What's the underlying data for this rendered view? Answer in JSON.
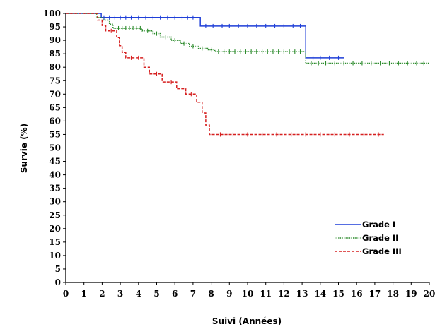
{
  "chart_data": {
    "type": "line",
    "chart_kind": "Kaplan-Meier survival curve (step)",
    "xlabel": "Suivi (Années)",
    "ylabel": "Survie (%)",
    "xlim": [
      0,
      20
    ],
    "ylim": [
      0,
      100
    ],
    "x_ticks": [
      0,
      1,
      2,
      3,
      4,
      5,
      6,
      7,
      8,
      9,
      10,
      11,
      12,
      13,
      14,
      15,
      16,
      17,
      18,
      19,
      20
    ],
    "y_ticks": [
      0,
      5,
      10,
      15,
      20,
      25,
      30,
      35,
      40,
      45,
      50,
      55,
      60,
      65,
      70,
      75,
      80,
      85,
      90,
      95,
      100
    ],
    "grid": false,
    "legend_position": "bottom-right",
    "series": [
      {
        "name": "Grade I",
        "color": "#1f3fd8",
        "line_style": "solid",
        "points": [
          [
            0,
            100
          ],
          [
            1.7,
            100
          ],
          [
            1.95,
            98.5
          ],
          [
            7.4,
            98.5
          ],
          [
            7.4,
            95.3
          ],
          [
            13.2,
            95.3
          ],
          [
            13.2,
            83.5
          ],
          [
            15.3,
            83.5
          ]
        ],
        "censor_x": [
          2.1,
          2.4,
          2.7,
          3.0,
          3.3,
          3.6,
          4.0,
          4.4,
          4.8,
          5.2,
          5.6,
          6.0,
          6.4,
          6.7,
          7.0,
          7.7,
          8.1,
          8.6,
          9.0,
          9.5,
          10.0,
          10.5,
          11.0,
          11.5,
          12.0,
          12.5,
          12.9,
          13.6,
          14.0,
          14.5,
          15.0
        ]
      },
      {
        "name": "Grade II",
        "color": "#2a8a2a",
        "line_style": "dotted",
        "points": [
          [
            0,
            100
          ],
          [
            1.6,
            100
          ],
          [
            1.7,
            98.5
          ],
          [
            2.1,
            97.5
          ],
          [
            2.4,
            96
          ],
          [
            2.6,
            94.5
          ],
          [
            4.2,
            93.5
          ],
          [
            4.8,
            92.5
          ],
          [
            5.2,
            91.2
          ],
          [
            5.8,
            90
          ],
          [
            6.3,
            88.8
          ],
          [
            6.8,
            87.8
          ],
          [
            7.3,
            87
          ],
          [
            7.8,
            86.5
          ],
          [
            8.2,
            85.8
          ],
          [
            13.2,
            85.8
          ],
          [
            13.2,
            81.5
          ],
          [
            20,
            81.5
          ]
        ],
        "censor_x": [
          2.9,
          3.1,
          3.3,
          3.5,
          3.7,
          3.9,
          4.1,
          4.5,
          5.0,
          5.5,
          6.0,
          6.5,
          7.0,
          7.5,
          8.0,
          8.4,
          8.7,
          9.0,
          9.3,
          9.6,
          9.9,
          10.2,
          10.5,
          10.8,
          11.1,
          11.4,
          11.7,
          12.0,
          12.3,
          12.6,
          12.9,
          13.5,
          13.9,
          14.3,
          14.8,
          15.3,
          15.8,
          16.3,
          16.8,
          17.3,
          17.8,
          18.3,
          18.8,
          19.3,
          19.7
        ]
      },
      {
        "name": "Grade III",
        "color": "#d62020",
        "line_style": "dashed",
        "points": [
          [
            0,
            100
          ],
          [
            1.65,
            100
          ],
          [
            1.75,
            97.5
          ],
          [
            2.0,
            95.5
          ],
          [
            2.2,
            93.5
          ],
          [
            2.8,
            91
          ],
          [
            2.95,
            88
          ],
          [
            3.1,
            85.5
          ],
          [
            3.3,
            83.5
          ],
          [
            4.3,
            80
          ],
          [
            4.6,
            77.5
          ],
          [
            5.3,
            74.5
          ],
          [
            6.1,
            72
          ],
          [
            6.6,
            70
          ],
          [
            7.2,
            67
          ],
          [
            7.5,
            63
          ],
          [
            7.7,
            58.5
          ],
          [
            7.9,
            55
          ],
          [
            17.5,
            55
          ]
        ],
        "censor_x": [
          2.5,
          3.6,
          4.0,
          5.0,
          5.8,
          6.9,
          8.5,
          9.2,
          10.0,
          10.8,
          11.6,
          12.4,
          13.2,
          14.0,
          14.8,
          15.6,
          16.4,
          17.2
        ]
      }
    ]
  }
}
